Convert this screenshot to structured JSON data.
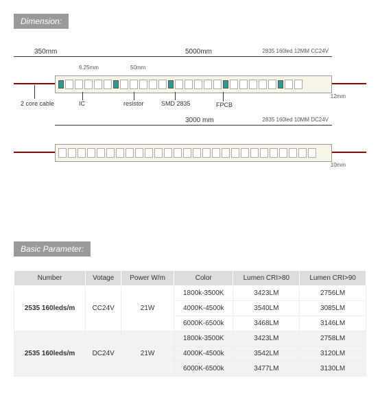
{
  "sections": {
    "dimension_label": "Dimension:",
    "param_label": "Basic Parameter:"
  },
  "diagram1": {
    "length_total": "5000mm",
    "length_lead": "350mm",
    "cut_small": "6.25mm",
    "cut_large": "50mm",
    "width_label": "12mm",
    "top_right_spec": "2835  160led 12MM  CC24V",
    "annot_cable": "2 core cable",
    "annot_ic": "IC",
    "annot_resistor": "resistor",
    "annot_smd": "SMD 2835",
    "annot_fpcb": "FPCB"
  },
  "diagram2": {
    "length_total": "3000 mm",
    "width_label": "10mm",
    "top_right_spec": "2835  160led 10MM  DC24V"
  },
  "table": {
    "headers": {
      "number": "Number",
      "voltage": "Votage",
      "power": "Power W/m",
      "color": "Color",
      "lumen80": "Lumen CRI>80",
      "lumen90": "Lumen CRI>90"
    },
    "groups": [
      {
        "number": "2535 160leds/m",
        "voltage": "CC24V",
        "power": "21W",
        "class": "group-a",
        "rows": [
          {
            "color": "1800k-3500K",
            "l80": "3423LM",
            "l90": "2756LM"
          },
          {
            "color": "4000K-4500k",
            "l80": "3540LM",
            "l90": "3085LM"
          },
          {
            "color": "6000K-6500k",
            "l80": "3468LM",
            "l90": "3146LM"
          }
        ]
      },
      {
        "number": "2535 160leds/m",
        "voltage": "DC24V",
        "power": "21W",
        "class": "group-b",
        "rows": [
          {
            "color": "1800k-3500K",
            "l80": "3423LM",
            "l90": "2758LM"
          },
          {
            "color": "4000K-4500k",
            "l80": "3542LM",
            "l90": "3120LM"
          },
          {
            "color": "6000K-6500k",
            "l80": "3477LM",
            "l90": "3130LM"
          }
        ]
      }
    ]
  }
}
